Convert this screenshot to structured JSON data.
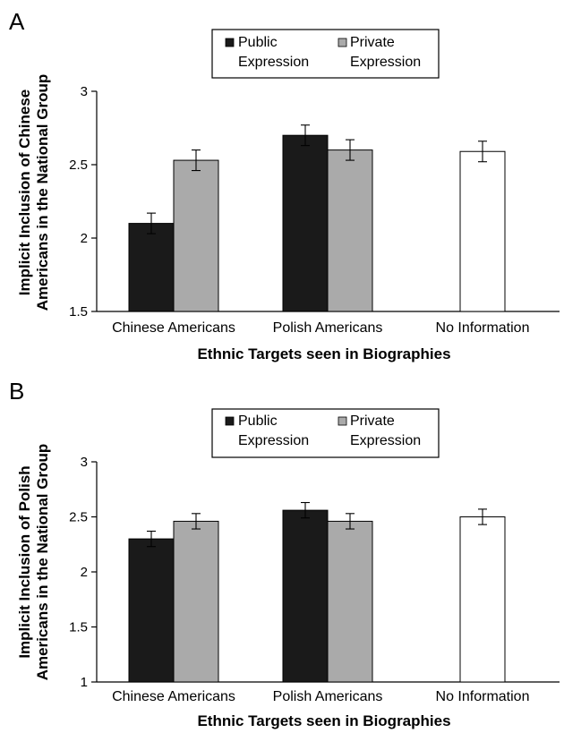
{
  "chart_data": [
    {
      "type": "bar",
      "panel_label": "A",
      "categories": [
        "Chinese Americans",
        "Polish Americans",
        "No Information"
      ],
      "series": [
        {
          "name": "Public Expression",
          "color": "#1a1a1a",
          "values": [
            2.1,
            2.7,
            null
          ],
          "errors": [
            0.07,
            0.07,
            null
          ]
        },
        {
          "name": "Private Expression",
          "color": "#aaaaaa",
          "values": [
            2.53,
            2.6,
            null
          ],
          "errors": [
            0.07,
            0.07,
            null
          ]
        },
        {
          "name": "",
          "color": "#ffffff",
          "values": [
            null,
            null,
            2.59
          ],
          "errors": [
            null,
            null,
            0.07
          ]
        }
      ],
      "legend": [
        "Public Expression",
        "Private Expression"
      ],
      "legend_lines": [
        [
          "Public",
          "Expression"
        ],
        [
          "Private",
          "Expression"
        ]
      ],
      "ylabel_lines": [
        "Implicit Inclusion of Chinese",
        "Americans in the National Group"
      ],
      "xlabel": "Ethnic Targets seen in Biographies",
      "ylim": [
        1.5,
        3
      ],
      "yticks": [
        1.5,
        2,
        2.5,
        3
      ],
      "ytick_labels": [
        "1.5",
        "2",
        "2.5",
        "3"
      ],
      "legend_position": "top-center"
    },
    {
      "type": "bar",
      "panel_label": "B",
      "categories": [
        "Chinese Americans",
        "Polish Americans",
        "No Information"
      ],
      "series": [
        {
          "name": "Public Expression",
          "color": "#1a1a1a",
          "values": [
            2.3,
            2.56,
            null
          ],
          "errors": [
            0.07,
            0.07,
            null
          ]
        },
        {
          "name": "Private Expression",
          "color": "#aaaaaa",
          "values": [
            2.46,
            2.46,
            null
          ],
          "errors": [
            0.07,
            0.07,
            null
          ]
        },
        {
          "name": "",
          "color": "#ffffff",
          "values": [
            null,
            null,
            2.5
          ],
          "errors": [
            null,
            null,
            0.07
          ]
        }
      ],
      "legend": [
        "Public Expression",
        "Private Expression"
      ],
      "legend_lines": [
        [
          "Public",
          "Expression"
        ],
        [
          "Private",
          "Expression"
        ]
      ],
      "ylabel_lines": [
        "Implicit Inclusion of Polish",
        "Americans in the National Group"
      ],
      "xlabel": "Ethnic Targets seen in Biographies",
      "ylim": [
        1,
        3
      ],
      "yticks": [
        1,
        1.5,
        2,
        2.5,
        3
      ],
      "ytick_labels": [
        "1",
        "1.5",
        "2",
        "2.5",
        "3"
      ],
      "legend_position": "top-center"
    }
  ]
}
